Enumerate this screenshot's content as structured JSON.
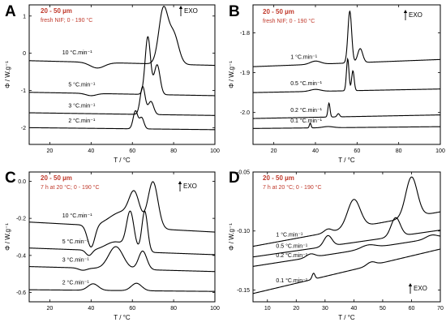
{
  "chart_data": [
    {
      "panel": "A",
      "type": "line",
      "sample": "20 - 50 µm",
      "condition": "fresh NIF; 0 - 190 °C",
      "exo": "EXO",
      "xlabel": "T  /  °C",
      "ylabel": "Φ  /  W.g⁻¹",
      "xlim": [
        10,
        100
      ],
      "ylim": [
        -2.45,
        1.3
      ],
      "xticks": [
        20,
        40,
        60,
        80,
        100
      ],
      "yticks": [
        1,
        0,
        -1,
        -2
      ],
      "ytick_labels": [
        "1",
        "0",
        "-1",
        "-2"
      ],
      "series": [
        {
          "name": "10 °C.min⁻¹",
          "baseline": -0.2,
          "slope": -0.0014,
          "peaks": [
            [
              43,
              3.5,
              -0.15
            ],
            [
              75,
              2.2,
              1.45
            ],
            [
              80,
              2.4,
              0.8
            ]
          ]
        },
        {
          "name": "5 °C.min⁻¹",
          "baseline": -1.05,
          "slope": -0.001,
          "peaks": [
            [
              40,
              2.5,
              -0.06
            ],
            [
              67.5,
              1.3,
              1.55
            ],
            [
              72,
              1.4,
              0.8
            ]
          ]
        },
        {
          "name": "3 °C.min⁻¹",
          "baseline": -1.6,
          "slope": -0.0008,
          "peaks": [
            [
              65,
              1.2,
              0.75
            ],
            [
              69,
              1.3,
              0.35
            ]
          ]
        },
        {
          "name": "2 °C.min⁻¹",
          "baseline": -2.0,
          "slope": -0.0006,
          "peaks": [
            [
              61.5,
              1.1,
              0.48
            ],
            [
              64.5,
              1.1,
              0.3
            ]
          ]
        }
      ]
    },
    {
      "panel": "B",
      "type": "line",
      "sample": "20 - 50 µm",
      "condition": "fresh NIF; 0 - 190 °C",
      "exo": "EXO",
      "xlabel": "T  /  °C",
      "ylabel": "Φ  /  W.g⁻¹",
      "xlim": [
        10,
        100
      ],
      "ylim": [
        -2.08,
        -1.73
      ],
      "xticks": [
        20,
        40,
        60,
        80,
        100
      ],
      "yticks": [
        -1.8,
        -1.9,
        -2.0
      ],
      "ytick_labels": [
        "-1.8",
        "-1.9",
        "-2.0"
      ],
      "series": [
        {
          "name": "1 °C.min⁻¹",
          "baseline": -1.885,
          "slope": 0.0002,
          "peaks": [
            [
              40,
              2.5,
              0.008
            ],
            [
              56.5,
              0.9,
              0.13
            ],
            [
              61.5,
              1.2,
              0.035
            ]
          ]
        },
        {
          "name": "0.5 °C.min⁻¹",
          "baseline": -1.95,
          "slope": 0.0001,
          "peaks": [
            [
              40,
              2.5,
              0.005
            ],
            [
              55.5,
              0.6,
              0.08
            ],
            [
              58,
              0.6,
              0.05
            ]
          ]
        },
        {
          "name": "0.2 °C.min⁻¹",
          "baseline": -2.015,
          "slope": 0.0001,
          "peaks": [
            [
              46.5,
              0.5,
              0.035
            ],
            [
              51,
              0.6,
              0.008
            ]
          ]
        },
        {
          "name": "0.1 °C.min⁻¹",
          "baseline": -2.04,
          "slope": 5e-05,
          "peaks": [
            [
              37.5,
              0.4,
              0.012
            ],
            [
              46,
              2.5,
              0.003
            ]
          ]
        }
      ]
    },
    {
      "panel": "C",
      "type": "line",
      "sample": "20 - 50 µm",
      "condition": "7 h at 20 °C; 0 - 190 °C",
      "exo": "EXO",
      "xlabel": "T  /  °C",
      "ylabel": "Φ  /  W.g⁻¹",
      "xlim": [
        10,
        100
      ],
      "ylim": [
        -0.65,
        0.05
      ],
      "xticks": [
        20,
        40,
        60,
        80,
        100
      ],
      "yticks": [
        0,
        -0.2,
        -0.4,
        -0.6
      ],
      "ytick_labels": [
        "0.0",
        "-0.2",
        "-0.4",
        "-0.6"
      ],
      "series": [
        {
          "name": "10 °C.min⁻¹",
          "baseline": -0.22,
          "slope": -0.0006,
          "peaks": [
            [
              40,
              1.8,
              -0.12
            ],
            [
              55,
              6.0,
              0.08
            ],
            [
              61,
              2.5,
              0.15
            ],
            [
              70,
              2.4,
              0.25
            ]
          ]
        },
        {
          "name": "5 °C.min⁻¹",
          "baseline": -0.36,
          "slope": -0.0004,
          "peaks": [
            [
              39,
              1.5,
              -0.03
            ],
            [
              52,
              5.0,
              0.05
            ],
            [
              59,
              1.8,
              0.2
            ],
            [
              66,
              1.4,
              0.22
            ]
          ]
        },
        {
          "name": "3 °C.min⁻¹",
          "baseline": -0.46,
          "slope": -0.0003,
          "peaks": [
            [
              36,
              2.0,
              -0.012
            ],
            [
              52,
              3.5,
              0.12
            ],
            [
              65,
              2.0,
              0.1
            ]
          ]
        },
        {
          "name": "2 °C.min⁻¹",
          "baseline": -0.585,
          "slope": -0.0001,
          "peaks": [
            [
              41,
              2.5,
              0.035
            ],
            [
              62,
              2.5,
              0.04
            ]
          ]
        }
      ]
    },
    {
      "panel": "D",
      "type": "line",
      "sample": "20 - 50 µm",
      "condition": "7 h at 20 °C; 0 - 190 °C",
      "exo": "EXO",
      "xlabel": "T  /  °C",
      "ylabel": "Φ  /  W.g⁻¹",
      "xlim": [
        5,
        70
      ],
      "ylim": [
        -0.16,
        -0.05
      ],
      "xticks": [
        10,
        20,
        30,
        40,
        50,
        60,
        70
      ],
      "yticks": [
        -0.05,
        -0.1,
        -0.15
      ],
      "ytick_labels": [
        "-0.05",
        "-0.10",
        "-0.15"
      ],
      "series": [
        {
          "name": "1 °C.min⁻¹",
          "baseline": -0.113,
          "slope": 0.00045,
          "peaks": [
            [
              31,
              1.3,
              0.003
            ],
            [
              40,
              2.2,
              0.024
            ],
            [
              60,
              2.0,
              0.034
            ]
          ]
        },
        {
          "name": "0.5 °C.min⁻¹",
          "baseline": -0.122,
          "slope": 0.00035,
          "peaks": [
            [
              31,
              1.4,
              0.009
            ],
            [
              54.5,
              1.6,
              0.016
            ]
          ]
        },
        {
          "name": "0.2 °C.min⁻¹",
          "baseline": -0.13,
          "slope": 0.00038,
          "peaks": [
            [
              25,
              1.5,
              0.003
            ],
            [
              45,
              2.5,
              0.003
            ],
            [
              67,
              2.0,
              0.003
            ]
          ]
        },
        {
          "name": "0.1 °C.min⁻¹",
          "baseline": -0.153,
          "slope": 0.00058,
          "peaks": [
            [
              26,
              0.5,
              0.005
            ],
            [
              46,
              1.5,
              0.003
            ]
          ]
        }
      ]
    }
  ]
}
